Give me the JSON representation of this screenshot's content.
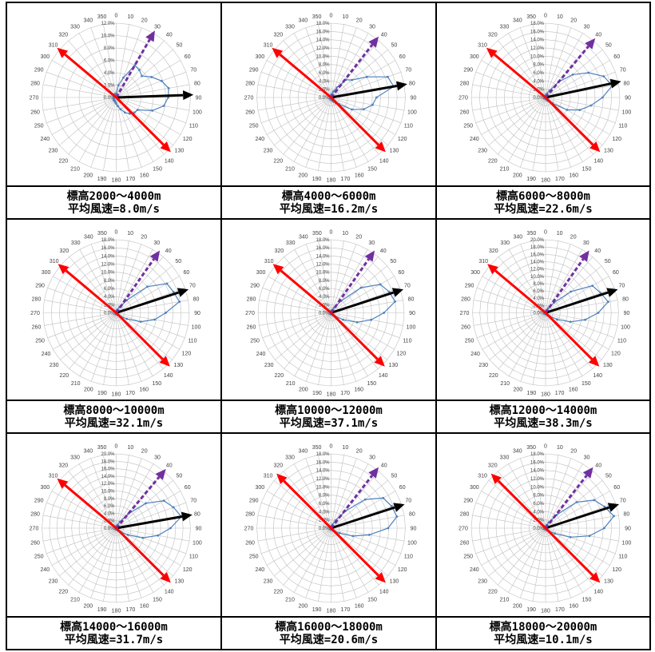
{
  "chart_data": [
    {
      "type": "radar",
      "title": "標高2000〜4000m",
      "subtitle": "平均風速=8.0m/s",
      "directions": [
        0,
        10,
        20,
        30,
        40,
        50,
        60,
        70,
        80,
        90,
        100,
        110,
        120,
        130,
        140,
        150,
        160,
        170,
        180,
        190,
        200,
        210,
        220,
        230,
        240,
        250,
        260,
        270,
        280,
        290,
        300,
        310,
        320,
        330,
        340,
        350
      ],
      "rlabels": [
        "0.0%",
        "2.0%",
        "4.0%",
        "6.0%",
        "8.0%",
        "10.0%",
        "12.0%"
      ],
      "rmax": 12,
      "values": [
        0.6,
        2.0,
        3.4,
        6.0,
        5.8,
        5.4,
        6.6,
        7.8,
        8.6,
        8.4,
        7.8,
        6.2,
        4.0,
        3.8,
        3.4,
        2.8,
        2.0,
        1.4,
        1.0,
        0.8,
        0.6,
        0.6,
        0.6,
        0.5,
        0.5,
        0.4,
        0.4,
        0.4,
        0.4,
        0.4,
        0.5,
        0.6,
        0.6,
        0.5,
        0.6,
        0.6
      ],
      "arrows": [
        {
          "color": "#000000",
          "direction": 88,
          "style": "solid"
        },
        {
          "color": "#7030a0",
          "direction": 30,
          "style": "dashed"
        },
        {
          "color": "#ff0000",
          "direction": 310,
          "style": "solid"
        },
        {
          "color": "#ff0000",
          "direction": 135,
          "style": "solid"
        }
      ]
    },
    {
      "type": "radar",
      "title": "標高4000〜6000m",
      "subtitle": "平均風速=16.2m/s",
      "directions": [
        0,
        10,
        20,
        30,
        40,
        50,
        60,
        70,
        80,
        90,
        100,
        110,
        120,
        130,
        140,
        150,
        160,
        170,
        180,
        190,
        200,
        210,
        220,
        230,
        240,
        250,
        260,
        270,
        280,
        290,
        300,
        310,
        320,
        330,
        340,
        350
      ],
      "rlabels": [
        "0.0%",
        "2.0%",
        "4.0%",
        "6.0%",
        "8.0%",
        "10.0%",
        "12.0%",
        "14.0%",
        "16.0%",
        "18.0%"
      ],
      "rmax": 18,
      "values": [
        0.5,
        0.8,
        1.5,
        2.8,
        5.6,
        6.6,
        10.0,
        14.6,
        15.4,
        11.0,
        10.2,
        8.4,
        5.8,
        2.5,
        1.8,
        1.2,
        0.8,
        0.6,
        0.5,
        0.4,
        0.4,
        0.4,
        0.4,
        0.3,
        0.3,
        0.3,
        0.3,
        0.3,
        0.3,
        0.3,
        0.3,
        0.4,
        0.4,
        0.4,
        0.4,
        0.5
      ],
      "arrows": [
        {
          "color": "#000000",
          "direction": 80,
          "style": "solid"
        },
        {
          "color": "#7030a0",
          "direction": 38,
          "style": "dashed"
        },
        {
          "color": "#ff0000",
          "direction": 310,
          "style": "solid"
        },
        {
          "color": "#ff0000",
          "direction": 135,
          "style": "solid"
        }
      ]
    },
    {
      "type": "radar",
      "title": "標高6000〜8000m",
      "subtitle": "平均風速=22.6m/s",
      "directions": [
        0,
        10,
        20,
        30,
        40,
        50,
        60,
        70,
        80,
        90,
        100,
        110,
        120,
        130,
        140,
        150,
        160,
        170,
        180,
        190,
        200,
        210,
        220,
        230,
        240,
        250,
        260,
        270,
        280,
        290,
        300,
        310,
        320,
        330,
        340,
        350
      ],
      "rlabels": [
        "0.0%",
        "2.0%",
        "4.0%",
        "6.0%",
        "8.0%",
        "10.0%",
        "12.0%",
        "14.0%",
        "16.0%",
        "18.0%"
      ],
      "rmax": 18,
      "values": [
        0.4,
        0.6,
        1.0,
        2.0,
        5.0,
        8.6,
        12.0,
        15.0,
        16.4,
        13.8,
        11.2,
        8.8,
        6.0,
        2.2,
        1.2,
        0.8,
        0.5,
        0.4,
        0.3,
        0.3,
        0.3,
        0.3,
        0.3,
        0.3,
        0.3,
        0.3,
        0.3,
        0.3,
        0.3,
        0.3,
        0.3,
        0.3,
        0.3,
        0.3,
        0.3,
        0.4
      ],
      "arrows": [
        {
          "color": "#000000",
          "direction": 78,
          "style": "solid"
        },
        {
          "color": "#7030a0",
          "direction": 40,
          "style": "dashed"
        },
        {
          "color": "#ff0000",
          "direction": 310,
          "style": "solid"
        },
        {
          "color": "#ff0000",
          "direction": 135,
          "style": "solid"
        }
      ]
    },
    {
      "type": "radar",
      "title": "標高8000〜10000m",
      "subtitle": "平均風速=32.1m/s",
      "directions": [
        0,
        10,
        20,
        30,
        40,
        50,
        60,
        70,
        80,
        90,
        100,
        110,
        120,
        130,
        140,
        150,
        160,
        170,
        180,
        190,
        200,
        210,
        220,
        230,
        240,
        250,
        260,
        270,
        280,
        290,
        300,
        310,
        320,
        330,
        340,
        350
      ],
      "rlabels": [
        "0.0%",
        "2.0%",
        "4.0%",
        "6.0%",
        "8.0%",
        "10.0%",
        "12.0%",
        "14.0%",
        "16.0%",
        "18.0%"
      ],
      "rmax": 18,
      "values": [
        0.3,
        0.5,
        0.8,
        1.6,
        4.0,
        10.0,
        14.4,
        15.0,
        15.8,
        12.2,
        9.6,
        6.4,
        3.0,
        1.4,
        0.8,
        0.5,
        0.4,
        0.3,
        0.3,
        0.3,
        0.3,
        0.3,
        0.3,
        0.3,
        0.3,
        0.3,
        0.3,
        0.3,
        0.3,
        0.3,
        0.3,
        0.3,
        0.3,
        0.3,
        0.3,
        0.3
      ],
      "arrows": [
        {
          "color": "#000000",
          "direction": 72,
          "style": "solid"
        },
        {
          "color": "#7030a0",
          "direction": 35,
          "style": "dashed"
        },
        {
          "color": "#ff0000",
          "direction": 310,
          "style": "solid"
        },
        {
          "color": "#ff0000",
          "direction": 135,
          "style": "solid"
        }
      ]
    },
    {
      "type": "radar",
      "title": "標高10000〜12000m",
      "subtitle": "平均風速=37.1m/s",
      "directions": [
        0,
        10,
        20,
        30,
        40,
        50,
        60,
        70,
        80,
        90,
        100,
        110,
        120,
        130,
        140,
        150,
        160,
        170,
        180,
        190,
        200,
        210,
        220,
        230,
        240,
        250,
        260,
        270,
        280,
        290,
        300,
        310,
        320,
        330,
        340,
        350
      ],
      "rlabels": [
        "0.0%",
        "2.0%",
        "4.0%",
        "6.0%",
        "8.0%",
        "10.0%",
        "12.0%",
        "14.0%",
        "16.0%",
        "18.0%"
      ],
      "rmax": 18,
      "values": [
        0.3,
        0.4,
        0.7,
        1.4,
        3.8,
        9.6,
        14.0,
        15.2,
        16.0,
        13.0,
        10.0,
        6.8,
        3.4,
        1.4,
        0.8,
        0.5,
        0.4,
        0.3,
        0.3,
        0.3,
        0.3,
        0.3,
        0.3,
        0.3,
        0.3,
        0.3,
        0.3,
        0.3,
        0.3,
        0.3,
        0.3,
        0.3,
        0.3,
        0.3,
        0.3,
        0.3
      ],
      "arrows": [
        {
          "color": "#000000",
          "direction": 72,
          "style": "solid"
        },
        {
          "color": "#7030a0",
          "direction": 35,
          "style": "dashed"
        },
        {
          "color": "#ff0000",
          "direction": 310,
          "style": "solid"
        },
        {
          "color": "#ff0000",
          "direction": 135,
          "style": "solid"
        }
      ]
    },
    {
      "type": "radar",
      "title": "標高12000〜14000m",
      "subtitle": "平均風速=38.3m/s",
      "directions": [
        0,
        10,
        20,
        30,
        40,
        50,
        60,
        70,
        80,
        90,
        100,
        110,
        120,
        130,
        140,
        150,
        160,
        170,
        180,
        190,
        200,
        210,
        220,
        230,
        240,
        250,
        260,
        270,
        280,
        290,
        300,
        310,
        320,
        330,
        340,
        350
      ],
      "rlabels": [
        "0.0%",
        "2.0%",
        "4.0%",
        "6.0%",
        "8.0%",
        "10.0%",
        "12.0%",
        "14.0%",
        "16.0%",
        "18.0%",
        "20.0%"
      ],
      "rmax": 20,
      "values": [
        0.3,
        0.4,
        0.7,
        1.4,
        3.6,
        9.0,
        14.8,
        16.0,
        17.4,
        14.4,
        11.0,
        7.2,
        3.6,
        1.5,
        0.9,
        0.6,
        0.4,
        0.3,
        0.3,
        0.3,
        0.3,
        0.3,
        0.3,
        0.3,
        0.3,
        0.3,
        0.3,
        0.3,
        0.3,
        0.3,
        0.3,
        0.3,
        0.3,
        0.3,
        0.3,
        0.3
      ],
      "arrows": [
        {
          "color": "#000000",
          "direction": 72,
          "style": "solid"
        },
        {
          "color": "#7030a0",
          "direction": 35,
          "style": "dashed"
        },
        {
          "color": "#ff0000",
          "direction": 310,
          "style": "solid"
        },
        {
          "color": "#ff0000",
          "direction": 135,
          "style": "solid"
        }
      ]
    },
    {
      "type": "radar",
      "title": "標高14000〜16000m",
      "subtitle": "平均風速=31.7m/s",
      "directions": [
        0,
        10,
        20,
        30,
        40,
        50,
        60,
        70,
        80,
        90,
        100,
        110,
        120,
        130,
        140,
        150,
        160,
        170,
        180,
        190,
        200,
        210,
        220,
        230,
        240,
        250,
        260,
        270,
        280,
        290,
        300,
        310,
        320,
        330,
        340,
        350
      ],
      "rlabels": [
        "0.0%",
        "2.0%",
        "4.0%",
        "6.0%",
        "8.0%",
        "10.0%",
        "12.0%",
        "14.0%",
        "16.0%",
        "18.0%",
        "20.0%"
      ],
      "rmax": 20,
      "values": [
        0.3,
        0.5,
        0.9,
        2.0,
        5.0,
        10.4,
        14.8,
        16.4,
        17.8,
        14.6,
        11.4,
        7.6,
        3.6,
        1.6,
        0.9,
        0.6,
        0.4,
        0.3,
        0.3,
        0.3,
        0.3,
        0.3,
        0.3,
        0.3,
        0.3,
        0.3,
        0.3,
        0.3,
        0.3,
        0.3,
        0.3,
        0.3,
        0.3,
        0.3,
        0.3,
        0.3
      ],
      "arrows": [
        {
          "color": "#000000",
          "direction": 80,
          "style": "solid"
        },
        {
          "color": "#7030a0",
          "direction": 40,
          "style": "dashed"
        },
        {
          "color": "#ff0000",
          "direction": 310,
          "style": "solid"
        },
        {
          "color": "#ff0000",
          "direction": 135,
          "style": "solid"
        }
      ]
    },
    {
      "type": "radar",
      "title": "標高16000〜18000m",
      "subtitle": "平均風速=20.6m/s",
      "directions": [
        0,
        10,
        20,
        30,
        40,
        50,
        60,
        70,
        80,
        90,
        100,
        110,
        120,
        130,
        140,
        150,
        160,
        170,
        180,
        190,
        200,
        210,
        220,
        230,
        240,
        250,
        260,
        270,
        280,
        290,
        300,
        310,
        320,
        330,
        340,
        350
      ],
      "rlabels": [
        "0.0%",
        "2.0%",
        "4.0%",
        "6.0%",
        "8.0%",
        "10.0%",
        "12.0%",
        "14.0%",
        "16.0%",
        "18.0%"
      ],
      "rmax": 18,
      "values": [
        0.3,
        0.5,
        0.9,
        2.2,
        5.4,
        10.8,
        14.6,
        15.6,
        16.2,
        13.8,
        9.4,
        5.6,
        2.4,
        1.2,
        0.7,
        0.5,
        0.4,
        0.3,
        0.3,
        0.3,
        0.3,
        0.3,
        0.3,
        0.3,
        0.3,
        0.3,
        0.3,
        0.3,
        0.3,
        0.3,
        0.3,
        0.3,
        0.3,
        0.3,
        0.3,
        0.3
      ],
      "arrows": [
        {
          "color": "#000000",
          "direction": 72,
          "style": "solid"
        },
        {
          "color": "#7030a0",
          "direction": 38,
          "style": "dashed"
        },
        {
          "color": "#ff0000",
          "direction": 315,
          "style": "solid"
        },
        {
          "color": "#ff0000",
          "direction": 135,
          "style": "solid"
        }
      ]
    },
    {
      "type": "radar",
      "title": "標高18000〜20000m",
      "subtitle": "平均風速=10.1m/s",
      "directions": [
        0,
        10,
        20,
        30,
        40,
        50,
        60,
        70,
        80,
        90,
        100,
        110,
        120,
        130,
        140,
        150,
        160,
        170,
        180,
        190,
        200,
        210,
        220,
        230,
        240,
        250,
        260,
        270,
        280,
        290,
        300,
        310,
        320,
        330,
        340,
        350
      ],
      "rlabels": [
        "0.0%",
        "2.0%",
        "4.0%",
        "6.0%",
        "8.0%",
        "10.0%",
        "12.0%",
        "14.0%",
        "16.0%",
        "18.0%"
      ],
      "rmax": 18,
      "values": [
        0.3,
        0.5,
        0.8,
        1.6,
        4.2,
        9.8,
        13.6,
        15.2,
        16.8,
        14.2,
        10.8,
        6.4,
        2.6,
        1.2,
        0.7,
        0.5,
        0.4,
        0.3,
        0.3,
        0.3,
        0.3,
        0.3,
        0.3,
        0.3,
        0.3,
        0.3,
        0.3,
        0.3,
        0.3,
        0.3,
        0.3,
        0.3,
        0.3,
        0.3,
        0.3,
        0.3
      ],
      "arrows": [
        {
          "color": "#000000",
          "direction": 72,
          "style": "solid"
        },
        {
          "color": "#7030a0",
          "direction": 38,
          "style": "dashed"
        },
        {
          "color": "#ff0000",
          "direction": 315,
          "style": "solid"
        },
        {
          "color": "#ff0000",
          "direction": 135,
          "style": "solid"
        }
      ]
    }
  ],
  "colors": {
    "series": "#4f81bd",
    "grid": "#bfbfbf",
    "mean_wind": "#000000",
    "shear": "#7030a0",
    "axis": "#ff0000"
  }
}
